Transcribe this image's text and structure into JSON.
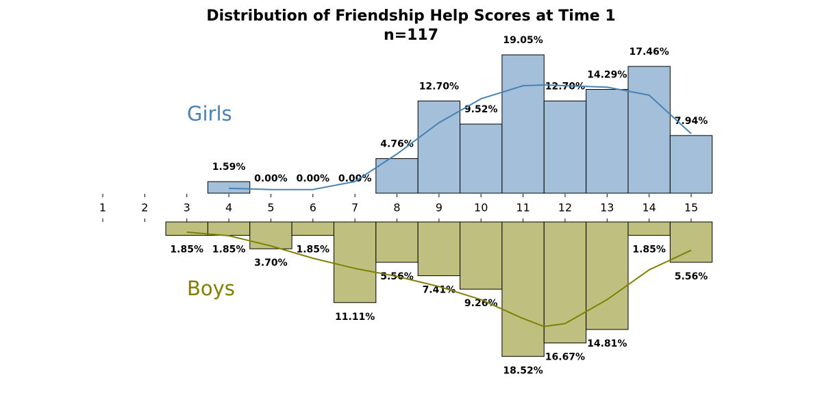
{
  "chart_data": {
    "type": "mirrored_histogram",
    "title": "Distribution of Friendship Help Scores at Time 1",
    "subtitle": "n=117",
    "xlim": [
      1,
      15
    ],
    "xticks": [
      1,
      2,
      3,
      4,
      5,
      6,
      7,
      8,
      9,
      10,
      11,
      12,
      13,
      14,
      15
    ],
    "ylim": [
      0,
      20
    ],
    "series": [
      {
        "name": "Girls",
        "color": "#a3bfd9",
        "curve_color": "#4682b4",
        "direction": "up",
        "x": [
          4,
          5,
          6,
          7,
          8,
          9,
          10,
          11,
          12,
          13,
          14,
          15
        ],
        "values": [
          1.59,
          0,
          0,
          0,
          4.76,
          12.7,
          9.52,
          19.05,
          12.7,
          14.29,
          17.46,
          7.94
        ],
        "value_labels": [
          "1.59%",
          "0.00%",
          "0.00%",
          "0.00%",
          "4.76%",
          "12.70%",
          "9.52%",
          "19.05%",
          "12.70%",
          "14.29%",
          "17.46%",
          "7.94%"
        ],
        "kde": {
          "x": [
            4,
            5,
            6,
            7,
            8,
            9,
            10,
            11,
            11.5,
            12,
            13,
            14,
            15
          ],
          "values": [
            0.67,
            0.5,
            0.5,
            1.6,
            5.4,
            9.7,
            13,
            14.8,
            14.9,
            14.8,
            14.6,
            13.5,
            8.2
          ]
        }
      },
      {
        "name": "Boys",
        "color": "#bfbf80",
        "curve_color": "#808000",
        "direction": "down",
        "x": [
          3,
          4,
          5,
          6,
          7,
          8,
          9,
          10,
          11,
          12,
          13,
          14,
          15
        ],
        "values": [
          1.85,
          1.85,
          3.7,
          1.85,
          11.11,
          5.56,
          7.41,
          9.26,
          18.52,
          16.67,
          14.81,
          1.85,
          5.56
        ],
        "value_labels": [
          "1.85%",
          "1.85%",
          "3.70%",
          "1.85%",
          "11.11%",
          "5.56%",
          "7.41%",
          "9.26%",
          "18.52%",
          "16.67%",
          "14.81%",
          "1.85%",
          "5.56%"
        ],
        "kde": {
          "x": [
            3,
            4,
            5,
            6,
            7,
            8,
            9,
            10,
            11,
            11.5,
            12,
            13,
            14,
            15
          ],
          "values": [
            1.4,
            1.9,
            3.3,
            5,
            6.4,
            7.5,
            8.9,
            10.7,
            13.3,
            14.4,
            14,
            10.7,
            6.6,
            3.9
          ]
        }
      }
    ]
  }
}
